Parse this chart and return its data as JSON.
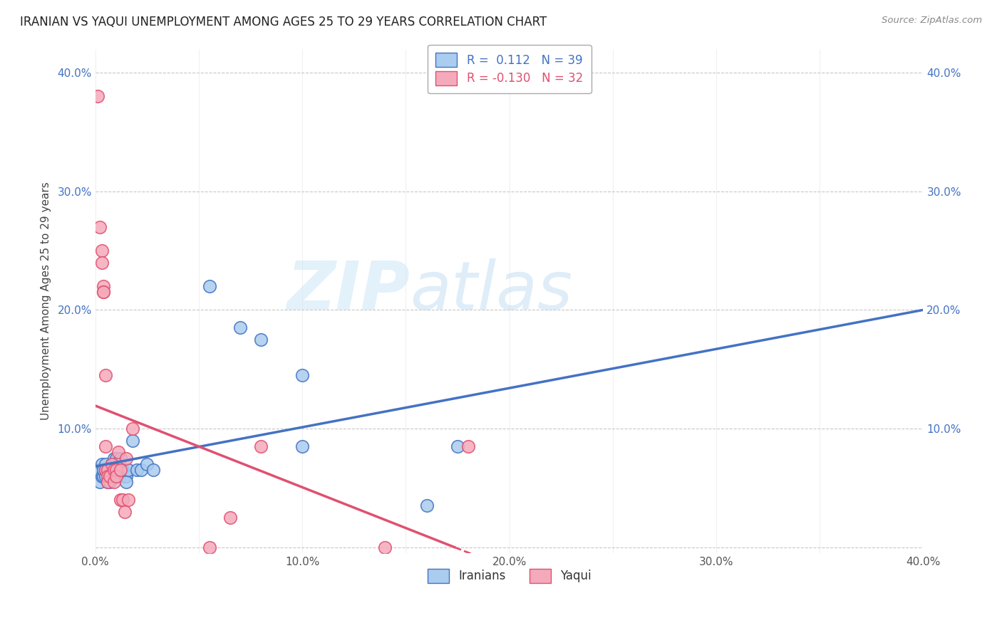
{
  "title": "IRANIAN VS YAQUI UNEMPLOYMENT AMONG AGES 25 TO 29 YEARS CORRELATION CHART",
  "source": "Source: ZipAtlas.com",
  "ylabel": "Unemployment Among Ages 25 to 29 years",
  "xlim": [
    0.0,
    0.4
  ],
  "ylim": [
    -0.005,
    0.42
  ],
  "xtick_labels": [
    "0.0%",
    "",
    "10.0%",
    "",
    "20.0%",
    "",
    "30.0%",
    "",
    "40.0%"
  ],
  "xtick_values": [
    0.0,
    0.05,
    0.1,
    0.15,
    0.2,
    0.25,
    0.3,
    0.35,
    0.4
  ],
  "ytick_labels": [
    "",
    "10.0%",
    "20.0%",
    "30.0%",
    "40.0%"
  ],
  "ytick_values": [
    0.0,
    0.1,
    0.2,
    0.3,
    0.4
  ],
  "grid_color": "#c8c8c8",
  "background_color": "#ffffff",
  "iranians_color": "#aaccee",
  "yaqui_color": "#f5aabb",
  "iranians_line_color": "#4472c4",
  "yaqui_line_color": "#e05070",
  "iranians_R": 0.112,
  "iranians_N": 39,
  "yaqui_R": -0.13,
  "yaqui_N": 32,
  "legend_label_iranians": "Iranians",
  "legend_label_yaqui": "Yaqui",
  "watermark_zip": "ZIP",
  "watermark_atlas": "atlas",
  "iranians_x": [
    0.001,
    0.002,
    0.003,
    0.003,
    0.004,
    0.004,
    0.005,
    0.005,
    0.005,
    0.006,
    0.006,
    0.007,
    0.007,
    0.008,
    0.008,
    0.009,
    0.009,
    0.01,
    0.01,
    0.011,
    0.011,
    0.012,
    0.013,
    0.014,
    0.015,
    0.015,
    0.016,
    0.018,
    0.02,
    0.022,
    0.025,
    0.028,
    0.055,
    0.07,
    0.08,
    0.1,
    0.1,
    0.16,
    0.175
  ],
  "iranians_y": [
    0.065,
    0.055,
    0.07,
    0.06,
    0.06,
    0.065,
    0.065,
    0.06,
    0.07,
    0.055,
    0.065,
    0.065,
    0.055,
    0.07,
    0.065,
    0.06,
    0.075,
    0.065,
    0.075,
    0.06,
    0.065,
    0.075,
    0.065,
    0.06,
    0.06,
    0.055,
    0.065,
    0.09,
    0.065,
    0.065,
    0.07,
    0.065,
    0.22,
    0.185,
    0.175,
    0.145,
    0.085,
    0.035,
    0.085
  ],
  "yaqui_x": [
    0.001,
    0.002,
    0.003,
    0.003,
    0.004,
    0.004,
    0.004,
    0.005,
    0.005,
    0.005,
    0.006,
    0.006,
    0.006,
    0.007,
    0.008,
    0.009,
    0.009,
    0.01,
    0.01,
    0.011,
    0.012,
    0.012,
    0.013,
    0.014,
    0.015,
    0.016,
    0.018,
    0.055,
    0.065,
    0.08,
    0.14,
    0.18
  ],
  "yaqui_y": [
    0.38,
    0.27,
    0.25,
    0.24,
    0.22,
    0.215,
    0.215,
    0.145,
    0.085,
    0.065,
    0.065,
    0.06,
    0.055,
    0.06,
    0.07,
    0.065,
    0.055,
    0.065,
    0.06,
    0.08,
    0.065,
    0.04,
    0.04,
    0.03,
    0.075,
    0.04,
    0.1,
    0.0,
    0.025,
    0.085,
    0.0,
    0.085
  ]
}
